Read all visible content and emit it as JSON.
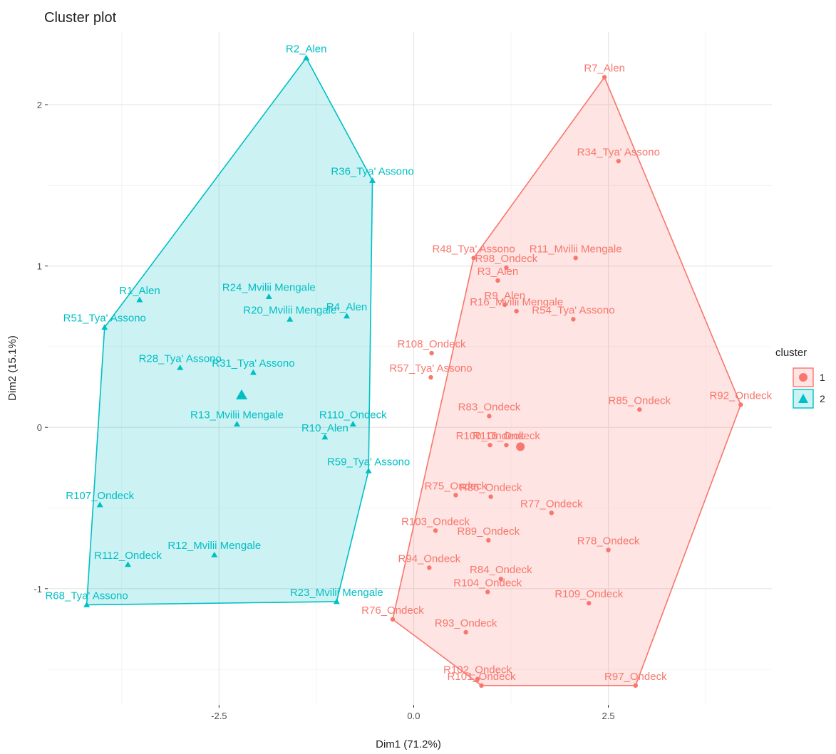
{
  "chart_data": {
    "type": "scatter",
    "title": "Cluster plot",
    "xlabel": "Dim1 (71.2%)",
    "ylabel": "Dim2 (15.1%)",
    "xlim": [
      -4.7,
      4.6
    ],
    "ylim": [
      -1.72,
      2.45
    ],
    "x_ticks": [
      -2.5,
      0.0,
      2.5
    ],
    "x_tick_labels": [
      "-2.5",
      "0.0",
      "2.5"
    ],
    "y_ticks": [
      -1,
      0,
      1,
      2
    ],
    "y_tick_labels": [
      "-1",
      "0",
      "1",
      "2"
    ],
    "grid": true,
    "legend": {
      "title": "cluster",
      "position": "right",
      "entries": [
        "1",
        "2"
      ]
    },
    "colors": {
      "1": "#F8766D",
      "2": "#00BFC4"
    },
    "series": [
      {
        "name": "1",
        "marker": "circle",
        "points": [
          {
            "label": "R7_Alen",
            "x": 2.45,
            "y": 2.17
          },
          {
            "label": "R34_Tya' Assono",
            "x": 2.63,
            "y": 1.65
          },
          {
            "label": "R11_Mvilii Mengale",
            "x": 2.08,
            "y": 1.05
          },
          {
            "label": "R48_Tya' Assono",
            "x": 0.77,
            "y": 1.05
          },
          {
            "label": "R98_Ondeck",
            "x": 1.19,
            "y": 0.99
          },
          {
            "label": "R3_Alen",
            "x": 1.08,
            "y": 0.91
          },
          {
            "label": "R9_Alen",
            "x": 1.17,
            "y": 0.76
          },
          {
            "label": "R16_Mvilii Mengale",
            "x": 1.32,
            "y": 0.72
          },
          {
            "label": "R54_Tya' Assono",
            "x": 2.05,
            "y": 0.67
          },
          {
            "label": "R108_Ondeck",
            "x": 0.23,
            "y": 0.46
          },
          {
            "label": "R57_Tya' Assono",
            "x": 0.22,
            "y": 0.31
          },
          {
            "label": "R92_Ondeck",
            "x": 4.2,
            "y": 0.14
          },
          {
            "label": "R85_Ondeck",
            "x": 2.9,
            "y": 0.11
          },
          {
            "label": "R83_Ondeck",
            "x": 0.97,
            "y": 0.07
          },
          {
            "label": "R100_Ondeck",
            "x": 0.98,
            "y": -0.11
          },
          {
            "label": "R116_Ondeck",
            "x": 1.19,
            "y": -0.11
          },
          {
            "label": "R75_Ondeck",
            "x": 0.54,
            "y": -0.42
          },
          {
            "label": "R86_Ondeck",
            "x": 0.99,
            "y": -0.43
          },
          {
            "label": "R77_Ondeck",
            "x": 1.77,
            "y": -0.53
          },
          {
            "label": "R103_Ondeck",
            "x": 0.28,
            "y": -0.64
          },
          {
            "label": "R89_Ondeck",
            "x": 0.96,
            "y": -0.7
          },
          {
            "label": "R78_Ondeck",
            "x": 2.5,
            "y": -0.76
          },
          {
            "label": "R94_Ondeck",
            "x": 0.2,
            "y": -0.87
          },
          {
            "label": "R84_Ondeck",
            "x": 1.12,
            "y": -0.94
          },
          {
            "label": "R104_Ondeck",
            "x": 0.95,
            "y": -1.02
          },
          {
            "label": "R109_Ondeck",
            "x": 2.25,
            "y": -1.09
          },
          {
            "label": "R76_Ondeck",
            "x": -0.27,
            "y": -1.19
          },
          {
            "label": "R93_Ondeck",
            "x": 0.67,
            "y": -1.27
          },
          {
            "label": "R102_Ondeck",
            "x": 0.82,
            "y": -1.56
          },
          {
            "label": "R101_Ondeck",
            "x": 0.87,
            "y": -1.6
          },
          {
            "label": "R97_Ondeck",
            "x": 2.85,
            "y": -1.6
          }
        ],
        "centroid": {
          "x": 1.37,
          "y": -0.12
        },
        "hull": [
          "R7_Alen",
          "R92_Ondeck",
          "R97_Ondeck",
          "R101_Ondeck",
          "R76_Ondeck",
          "R48_Tya' Assono"
        ]
      },
      {
        "name": "2",
        "marker": "triangle",
        "points": [
          {
            "label": "R2_Alen",
            "x": -1.38,
            "y": 2.29
          },
          {
            "label": "R36_Tya' Assono",
            "x": -0.53,
            "y": 1.53
          },
          {
            "label": "R1_Alen",
            "x": -3.52,
            "y": 0.79
          },
          {
            "label": "R24_Mvilii Mengale",
            "x": -1.86,
            "y": 0.81
          },
          {
            "label": "R4_Alen",
            "x": -0.86,
            "y": 0.69
          },
          {
            "label": "R20_Mvilii Mengale",
            "x": -1.59,
            "y": 0.67
          },
          {
            "label": "R51_Tya' Assono",
            "x": -3.97,
            "y": 0.62
          },
          {
            "label": "R28_Tya' Assono",
            "x": -3.0,
            "y": 0.37
          },
          {
            "label": "R31_Tya' Assono",
            "x": -2.06,
            "y": 0.34
          },
          {
            "label": "R13_Mvilii Mengale",
            "x": -2.27,
            "y": 0.02
          },
          {
            "label": "R110_Ondeck",
            "x": -0.78,
            "y": 0.02
          },
          {
            "label": "R10_Alen",
            "x": -1.14,
            "y": -0.06
          },
          {
            "label": "R59_Tya' Assono",
            "x": -0.58,
            "y": -0.27
          },
          {
            "label": "R107_Ondeck",
            "x": -4.03,
            "y": -0.48
          },
          {
            "label": "R12_Mvilii Mengale",
            "x": -2.56,
            "y": -0.79
          },
          {
            "label": "R112_Ondeck",
            "x": -3.67,
            "y": -0.85
          },
          {
            "label": "R23_Mvilii Mengale",
            "x": -0.99,
            "y": -1.08
          },
          {
            "label": "R68_Tya' Assono",
            "x": -4.2,
            "y": -1.1
          }
        ],
        "centroid": {
          "x": -2.21,
          "y": 0.2
        },
        "hull": [
          "R2_Alen",
          "R36_Tya' Assono",
          "R59_Tya' Assono",
          "R23_Mvilii Mengale",
          "R68_Tya' Assono",
          "R51_Tya' Assono"
        ]
      }
    ]
  }
}
